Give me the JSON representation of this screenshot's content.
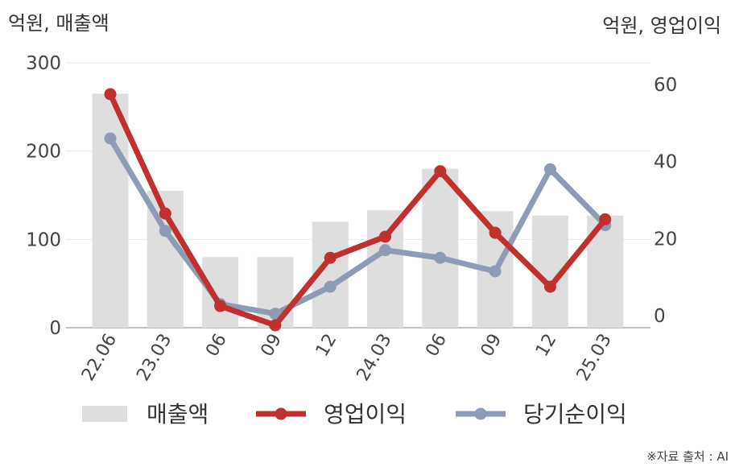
{
  "chart_data": {
    "type": "bar+line",
    "categories": [
      "22.06",
      "23.03",
      "06",
      "09",
      "12",
      "24.03",
      "06",
      "09",
      "12",
      "25.03"
    ],
    "y_left": {
      "label": "억원, 매출액",
      "range": [
        0,
        300
      ],
      "ticks": [
        0,
        100,
        200,
        300
      ]
    },
    "y_right": {
      "label": "억원, 영업이익",
      "range": [
        -3,
        65
      ],
      "ticks": [
        0,
        20,
        40,
        60
      ]
    },
    "series": [
      {
        "name": "매출액",
        "type": "bar",
        "axis": "left",
        "color": "#dedede",
        "values": [
          265,
          155,
          80,
          80,
          120,
          133,
          180,
          132,
          127,
          127
        ]
      },
      {
        "name": "영업이익",
        "type": "line",
        "axis": "right",
        "color": "#c0302f",
        "values": [
          57.5,
          26.5,
          2.5,
          -2.5,
          15,
          20.5,
          37.5,
          21.5,
          7.5,
          25
        ]
      },
      {
        "name": "당기순이익",
        "type": "line",
        "axis": "right",
        "color": "#8e9bb5",
        "values": [
          46,
          22,
          3,
          0.5,
          7.5,
          17,
          15,
          11.5,
          38,
          23.5
        ]
      }
    ],
    "grid": true,
    "legend": "bottom",
    "source": "※자료 출처 : AI"
  }
}
